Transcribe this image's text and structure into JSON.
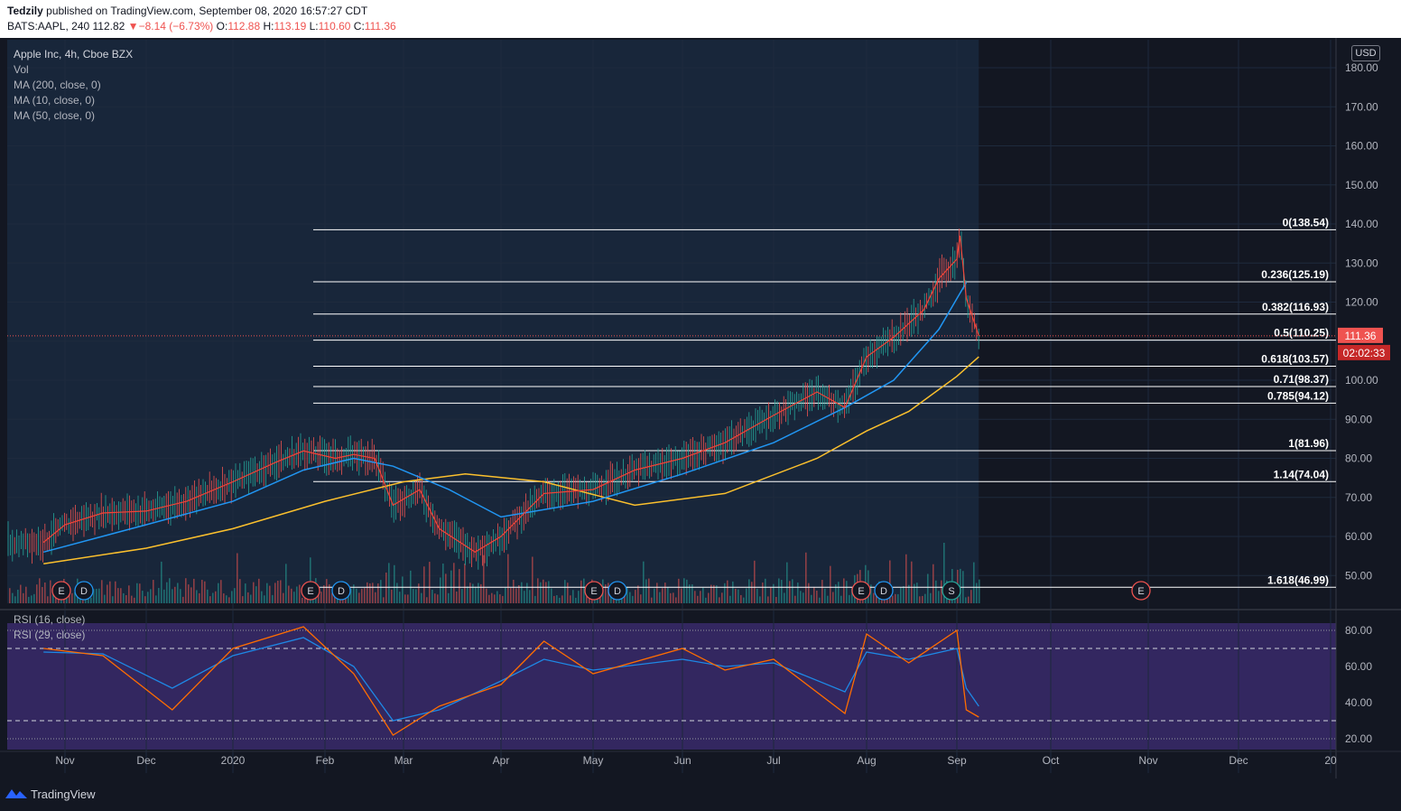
{
  "header": {
    "publisher": "Tedzily",
    "published_text": "published on TradingView.com, September 08, 2020 16:57:27 CDT",
    "symbol": "BATS:AAPL, 240",
    "last": "112.82",
    "change_arrow": "▼",
    "change": "−8.14 (−6.73%)",
    "o_label": "O:",
    "o": "112.88",
    "h_label": "H:",
    "h": "113.19",
    "l_label": "L:",
    "l": "110.60",
    "c_label": "C:",
    "c": "111.36"
  },
  "legend": {
    "title": "Apple Inc, 4h, Cboe BZX",
    "vol": "Vol",
    "ma200": "MA (200, close, 0)",
    "ma10": "MA (10, close, 0)",
    "ma50": "MA (50, close, 0)",
    "rsi16": "RSI (16, close)",
    "rsi29": "RSI (29, close)"
  },
  "currency": "USD",
  "brand": "TradingView",
  "colors": {
    "background": "#131722",
    "up": "#26a69a",
    "down": "#ef5350",
    "ma10": "#f44336",
    "ma50": "#2196f3",
    "ma200": "#fbc02d",
    "fib": "#ffffff",
    "rsi_fill": "#3a2a6b",
    "rsi16": "#1e88e5",
    "rsi29": "#ff6d00"
  },
  "chart_data": {
    "type": "line",
    "price_axis": [
      "180.00",
      "170.00",
      "160.00",
      "150.00",
      "140.00",
      "130.00",
      "120.00",
      "110.00",
      "100.00",
      "90.00",
      "80.00",
      "70.00",
      "60.00",
      "50.00"
    ],
    "x_labels": [
      "Nov",
      "Dec",
      "2020",
      "Feb",
      "Mar",
      "Apr",
      "May",
      "Jun",
      "Jul",
      "Aug",
      "Sep",
      "Oct",
      "Nov",
      "Dec",
      "20"
    ],
    "rsi_axis": [
      "80.00",
      "60.00",
      "40.00",
      "20.00"
    ],
    "last_price": "111.36",
    "countdown": "02:02:33",
    "fib_levels": [
      {
        "level": "0",
        "price": 138.54,
        "label": "0(138.54)"
      },
      {
        "level": "0.236",
        "price": 125.19,
        "label": "0.236(125.19)"
      },
      {
        "level": "0.382",
        "price": 116.93,
        "label": "0.382(116.93)"
      },
      {
        "level": "0.5",
        "price": 110.25,
        "label": "0.5(110.25)"
      },
      {
        "level": "0.618",
        "price": 103.57,
        "label": "0.618(103.57)"
      },
      {
        "level": "0.71",
        "price": 98.37,
        "label": "0.71(98.37)"
      },
      {
        "level": "0.785",
        "price": 94.12,
        "label": "0.785(94.12)"
      },
      {
        "level": "1",
        "price": 81.96,
        "label": "1(81.96)"
      },
      {
        "level": "1.14",
        "price": 74.04,
        "label": "1.14(74.04)"
      },
      {
        "level": "1.618",
        "price": 46.99,
        "label": "1.618(46.99)"
      }
    ],
    "events": [
      {
        "type": "E",
        "month": "Nov"
      },
      {
        "type": "D",
        "month": "Nov"
      },
      {
        "type": "E",
        "month": "Feb"
      },
      {
        "type": "D",
        "month": "Feb"
      },
      {
        "type": "E",
        "month": "May"
      },
      {
        "type": "D",
        "month": "May"
      },
      {
        "type": "E",
        "month": "Aug"
      },
      {
        "type": "D",
        "month": "Aug"
      },
      {
        "type": "S",
        "month": "Sep"
      },
      {
        "type": "E",
        "month": "Nov"
      }
    ],
    "price_series": [
      [
        "Oct 24",
        58.5
      ],
      [
        "Nov 1",
        63
      ],
      [
        "Nov 15",
        66
      ],
      [
        "Dec 1",
        66.5
      ],
      [
        "Dec 15",
        69
      ],
      [
        "Jan 1",
        74
      ],
      [
        "Jan 15",
        79
      ],
      [
        "Jan 24",
        81.9
      ],
      [
        "Feb 5",
        80
      ],
      [
        "Feb 12",
        81
      ],
      [
        "Feb 20",
        80
      ],
      [
        "Feb 27",
        68
      ],
      [
        "Mar 6",
        72
      ],
      [
        "Mar 12",
        62
      ],
      [
        "Mar 23",
        56
      ],
      [
        "Apr 1",
        60
      ],
      [
        "Apr 15",
        71
      ],
      [
        "May 1",
        72
      ],
      [
        "May 15",
        77
      ],
      [
        "Jun 1",
        80
      ],
      [
        "Jun 15",
        84
      ],
      [
        "Jul 1",
        91
      ],
      [
        "Jul 15",
        97
      ],
      [
        "Jul 24",
        93
      ],
      [
        "Jul 31",
        106
      ],
      [
        "Aug 10",
        111
      ],
      [
        "Aug 20",
        118
      ],
      [
        "Aug 25",
        126
      ],
      [
        "Aug 31",
        131
      ],
      [
        "Sep 2",
        137
      ],
      [
        "Sep 4",
        121
      ],
      [
        "Sep 8",
        111.36
      ]
    ],
    "ma50_series": [
      [
        "Oct 24",
        56
      ],
      [
        "Dec 1",
        63
      ],
      [
        "Jan 1",
        69
      ],
      [
        "Jan 24",
        77
      ],
      [
        "Feb 12",
        80
      ],
      [
        "Feb 27",
        78
      ],
      [
        "Mar 15",
        72
      ],
      [
        "Apr 1",
        65
      ],
      [
        "May 1",
        69
      ],
      [
        "Jun 1",
        76
      ],
      [
        "Jul 1",
        84
      ],
      [
        "Jul 24",
        93
      ],
      [
        "Aug 10",
        100
      ],
      [
        "Aug 25",
        113
      ],
      [
        "Sep 4",
        125
      ]
    ],
    "ma200_series": [
      [
        "Oct 24",
        53
      ],
      [
        "Dec 1",
        57
      ],
      [
        "Jan 1",
        62
      ],
      [
        "Feb 1",
        69
      ],
      [
        "Mar 1",
        74
      ],
      [
        "Mar 20",
        76
      ],
      [
        "Apr 15",
        74
      ],
      [
        "May 15",
        68
      ],
      [
        "Jun 15",
        71
      ],
      [
        "Jul 15",
        80
      ],
      [
        "Aug 1",
        87
      ],
      [
        "Aug 15",
        92
      ],
      [
        "Sep 1",
        101
      ],
      [
        "Sep 8",
        106
      ]
    ],
    "rsi_range": [
      20,
      85
    ],
    "rsi_bands": [
      30,
      70
    ],
    "rsi29_series": [
      [
        "Oct 24",
        68
      ],
      [
        "Nov 15",
        67
      ],
      [
        "Dec 10",
        48
      ],
      [
        "Jan 1",
        66
      ],
      [
        "Jan 24",
        76
      ],
      [
        "Feb 12",
        60
      ],
      [
        "Feb 27",
        30
      ],
      [
        "Mar 12",
        36
      ],
      [
        "Apr 1",
        52
      ],
      [
        "Apr 15",
        64
      ],
      [
        "May 1",
        58
      ],
      [
        "Jun 1",
        64
      ],
      [
        "Jun 15",
        60
      ],
      [
        "Jul 1",
        62
      ],
      [
        "Jul 24",
        46
      ],
      [
        "Jul 31",
        68
      ],
      [
        "Aug 15",
        64
      ],
      [
        "Aug 31",
        70
      ],
      [
        "Sep 4",
        48
      ],
      [
        "Sep 8",
        38
      ]
    ],
    "rsi16_series": [
      [
        "Oct 24",
        70
      ],
      [
        "Nov 15",
        66
      ],
      [
        "Dec 10",
        36
      ],
      [
        "Jan 1",
        70
      ],
      [
        "Jan 24",
        82
      ],
      [
        "Feb 12",
        56
      ],
      [
        "Feb 27",
        22
      ],
      [
        "Mar 12",
        38
      ],
      [
        "Apr 1",
        50
      ],
      [
        "Apr 15",
        74
      ],
      [
        "May 1",
        56
      ],
      [
        "Jun 1",
        70
      ],
      [
        "Jun 15",
        58
      ],
      [
        "Jul 1",
        64
      ],
      [
        "Jul 24",
        34
      ],
      [
        "Jul 31",
        78
      ],
      [
        "Aug 15",
        62
      ],
      [
        "Aug 31",
        80
      ],
      [
        "Sep 4",
        36
      ],
      [
        "Sep 8",
        32
      ]
    ]
  }
}
